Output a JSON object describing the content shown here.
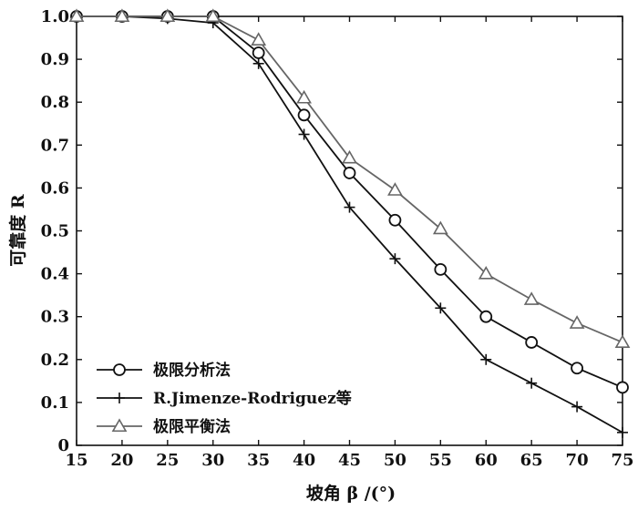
{
  "chart_data": {
    "type": "line",
    "title": "",
    "xlabel": "坡角 β /(°)",
    "ylabel": "可靠度 R",
    "xlim": [
      15,
      75
    ],
    "ylim": [
      0,
      1.0
    ],
    "x_ticks": [
      15,
      20,
      25,
      30,
      35,
      40,
      45,
      50,
      55,
      60,
      65,
      70,
      75
    ],
    "y_ticks": [
      0,
      0.1,
      0.2,
      0.3,
      0.4,
      0.5,
      0.6,
      0.7,
      0.8,
      0.9,
      1.0
    ],
    "y_tick_labels": [
      "0",
      "0.1",
      "0.2",
      "0.3",
      "0.4",
      "0.5",
      "0.6",
      "0.7",
      "0.8",
      "0.9",
      "1.0"
    ],
    "grid": false,
    "legend_position": "bottom-left",
    "series": [
      {
        "name": "极限分析法",
        "marker": "circle",
        "color": "#111111",
        "x": [
          15,
          20,
          25,
          30,
          35,
          40,
          45,
          50,
          55,
          60,
          65,
          70,
          75
        ],
        "values": [
          1.0,
          1.0,
          1.0,
          1.0,
          0.915,
          0.77,
          0.635,
          0.525,
          0.41,
          0.3,
          0.24,
          0.18,
          0.135
        ]
      },
      {
        "name": "R.Jimenze-Rodriguez等",
        "marker": "plus",
        "color": "#111111",
        "x": [
          15,
          20,
          25,
          30,
          35,
          40,
          45,
          50,
          55,
          60,
          65,
          70,
          75
        ],
        "values": [
          1.0,
          1.0,
          0.995,
          0.985,
          0.89,
          0.725,
          0.555,
          0.435,
          0.32,
          0.2,
          0.145,
          0.09,
          0.03
        ]
      },
      {
        "name": "极限平衡法",
        "marker": "triangle",
        "color": "#666666",
        "x": [
          15,
          20,
          25,
          30,
          35,
          40,
          45,
          50,
          55,
          60,
          65,
          70,
          75
        ],
        "values": [
          1.0,
          1.0,
          1.0,
          1.0,
          0.945,
          0.81,
          0.67,
          0.595,
          0.505,
          0.4,
          0.34,
          0.285,
          0.24
        ]
      }
    ]
  }
}
